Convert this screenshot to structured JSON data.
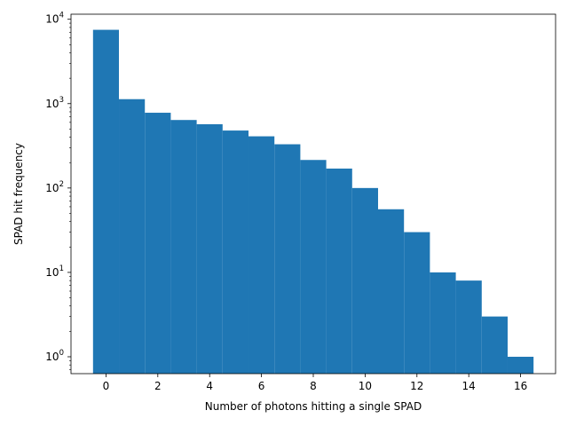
{
  "chart_data": {
    "type": "bar",
    "title": "",
    "xlabel": "Number of photons hitting a single SPAD",
    "ylabel": "SPAD hit frequency",
    "y_scale": "log",
    "x_range": [
      -1.35,
      17.35
    ],
    "y_range_log10": [
      -0.2,
      4.06
    ],
    "bar_color": "#1f77b4",
    "bin_width": 1,
    "bins": [
      {
        "x": 0,
        "value": 7500
      },
      {
        "x": 1,
        "value": 1130
      },
      {
        "x": 2,
        "value": 780
      },
      {
        "x": 3,
        "value": 640
      },
      {
        "x": 4,
        "value": 570
      },
      {
        "x": 5,
        "value": 480
      },
      {
        "x": 6,
        "value": 410
      },
      {
        "x": 7,
        "value": 330
      },
      {
        "x": 8,
        "value": 215
      },
      {
        "x": 9,
        "value": 170
      },
      {
        "x": 10,
        "value": 100
      },
      {
        "x": 11,
        "value": 56
      },
      {
        "x": 12,
        "value": 30
      },
      {
        "x": 13,
        "value": 10
      },
      {
        "x": 14,
        "value": 8
      },
      {
        "x": 15,
        "value": 3
      },
      {
        "x": 16,
        "value": 1
      }
    ],
    "x_ticks": [
      0,
      2,
      4,
      6,
      8,
      10,
      12,
      14,
      16
    ],
    "y_ticks": [
      {
        "exp": 0,
        "label": "10",
        "sup": "0"
      },
      {
        "exp": 1,
        "label": "10",
        "sup": "1"
      },
      {
        "exp": 2,
        "label": "10",
        "sup": "2"
      },
      {
        "exp": 3,
        "label": "10",
        "sup": "3"
      },
      {
        "exp": 4,
        "label": "10",
        "sup": "4"
      }
    ],
    "grid": false,
    "legend": "none"
  }
}
